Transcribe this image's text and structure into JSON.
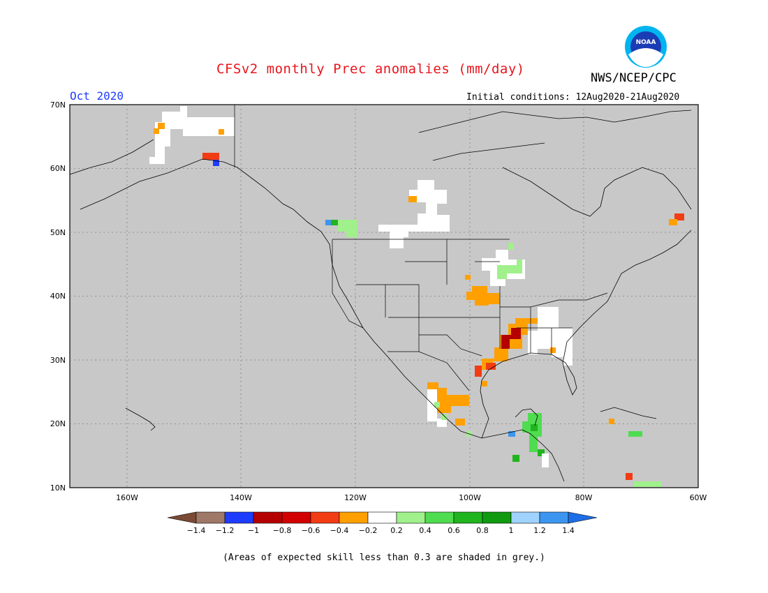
{
  "header": {
    "title": "CFSv2 monthly Prec anomalies (mm/day)",
    "agency": "NWS/NCEP/CPC",
    "logo_text": "NOAA",
    "month": "Oct 2020",
    "initial_conditions": "Initial conditions: 12Aug2020-21Aug2020"
  },
  "map": {
    "lon_range": [
      -170,
      -60
    ],
    "lat_range": [
      10,
      70
    ],
    "lat_labels": [
      "70N",
      "60N",
      "50N",
      "40N",
      "30N",
      "20N",
      "10N"
    ],
    "lon_labels": [
      "160W",
      "140W",
      "120W",
      "100W",
      "80W",
      "60W"
    ],
    "background_color": "#c8c8c8",
    "anomaly_regions": [
      {
        "name": "alaska-north-slope",
        "class": "white"
      },
      {
        "name": "alaska-south",
        "class": "-0.4 to -0.6"
      },
      {
        "name": "pacific-northwest",
        "class": "0.4 to 0.6"
      },
      {
        "name": "canadian-prairies",
        "class": "white"
      },
      {
        "name": "upper-midwest",
        "class": "0.2 to 0.4"
      },
      {
        "name": "central-plains",
        "class": "-0.2 to -0.4"
      },
      {
        "name": "lower-mississippi",
        "class": "-0.8 to -1"
      },
      {
        "name": "southeast",
        "class": "white"
      },
      {
        "name": "western-mexico",
        "class": "-0.2 to -0.4"
      },
      {
        "name": "central-america",
        "class": "0.6 to 0.8"
      },
      {
        "name": "caribbean",
        "class": "0.4 to 0.6"
      },
      {
        "name": "newfoundland",
        "class": "-0.4 to -0.6"
      }
    ]
  },
  "colorbar": {
    "colors": [
      "#7b4a35",
      "#a07868",
      "#1e3cff",
      "#b40000",
      "#d20000",
      "#f23c14",
      "#ffa000",
      "#ffffff",
      "#a0f08c",
      "#50dc50",
      "#20b41e",
      "#0f9a0f",
      "#a0d2ff",
      "#3c96f0",
      "#1e6ee6"
    ],
    "labels": [
      "-1.4",
      "-1.2",
      "-1",
      "-0.8",
      "-0.6",
      "-0.4",
      "-0.2",
      "0.2",
      "0.4",
      "0.6",
      "0.8",
      "1",
      "1.2",
      "1.4"
    ]
  },
  "footnote": "(Areas of expected skill less than 0.3 are shaded in grey.)"
}
